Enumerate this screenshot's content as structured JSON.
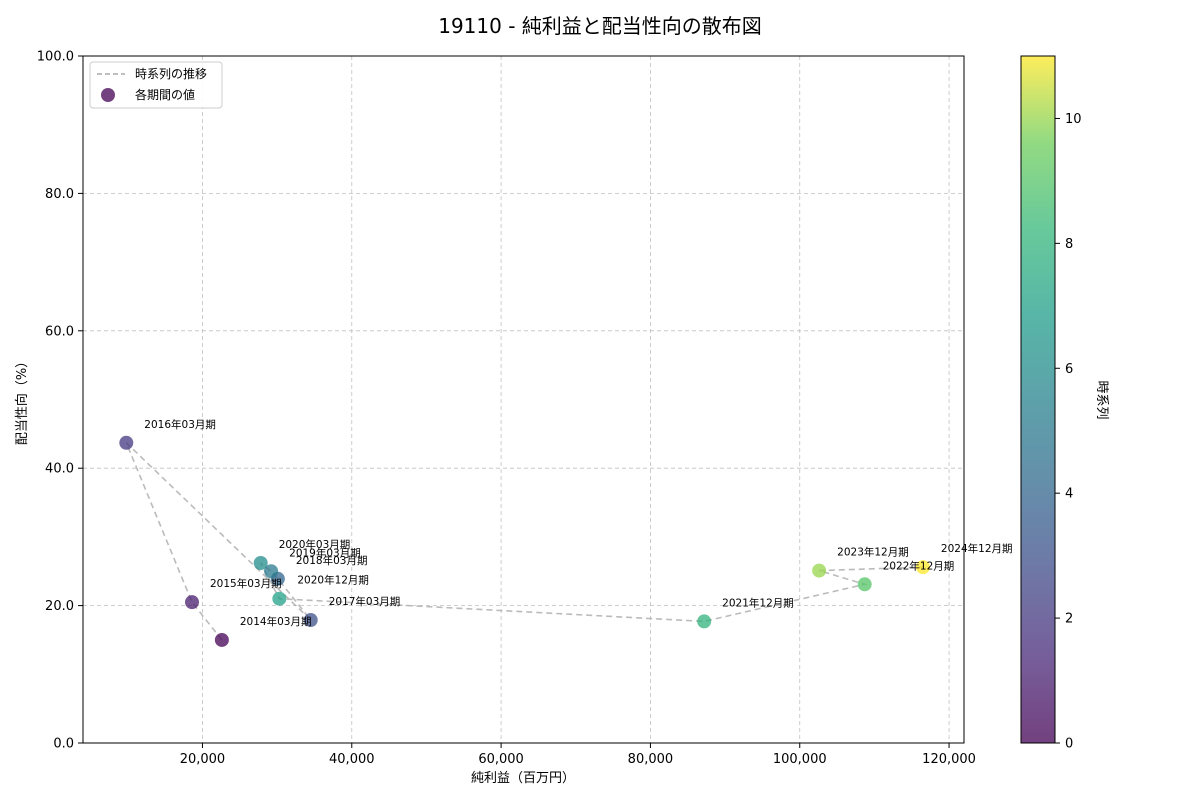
{
  "chart_data": {
    "type": "scatter",
    "title": "19110 - 純利益と配当性向の散布図",
    "xlabel": "純利益（百万円）",
    "ylabel": "配当性向（%）",
    "xlim": [
      4000,
      122000
    ],
    "ylim": [
      0,
      100
    ],
    "x_ticks": [
      20000,
      40000,
      60000,
      80000,
      100000,
      120000
    ],
    "x_tick_labels": [
      "20,000",
      "40,000",
      "60,000",
      "80,000",
      "100,000",
      "120,000"
    ],
    "y_ticks": [
      0,
      20,
      40,
      60,
      80,
      100
    ],
    "y_tick_labels": [
      "0.0",
      "20.0",
      "40.0",
      "60.0",
      "80.0",
      "100.0"
    ],
    "grid": true,
    "legend": {
      "position": "top-left",
      "line_label": "時系列の推移",
      "marker_label": "各期間の値"
    },
    "colorbar": {
      "label": "時系列",
      "min": 0,
      "max": 11,
      "ticks": [
        0,
        2,
        4,
        6,
        8,
        10
      ],
      "colormap": "viridis"
    },
    "points": [
      {
        "label": "2014年03月期",
        "x": 22600,
        "y": 15.0,
        "t": 0
      },
      {
        "label": "2015年03月期",
        "x": 18600,
        "y": 20.5,
        "t": 1
      },
      {
        "label": "2016年03月期",
        "x": 9800,
        "y": 43.7,
        "t": 2
      },
      {
        "label": "2017年03月期",
        "x": 34500,
        "y": 17.9,
        "t": 3
      },
      {
        "label": "2018年03月期",
        "x": 30100,
        "y": 23.9,
        "t": 4
      },
      {
        "label": "2019年03月期",
        "x": 29200,
        "y": 25.0,
        "t": 5
      },
      {
        "label": "2020年03月期",
        "x": 27800,
        "y": 26.2,
        "t": 6
      },
      {
        "label": "2020年12月期",
        "x": 30300,
        "y": 21.0,
        "t": 7
      },
      {
        "label": "2021年12月期",
        "x": 87200,
        "y": 17.7,
        "t": 8
      },
      {
        "label": "2022年12月期",
        "x": 108700,
        "y": 23.1,
        "t": 9
      },
      {
        "label": "2023年12月期",
        "x": 102600,
        "y": 25.1,
        "t": 10
      },
      {
        "label": "2024年12月期",
        "x": 116500,
        "y": 25.6,
        "t": 11
      }
    ]
  }
}
